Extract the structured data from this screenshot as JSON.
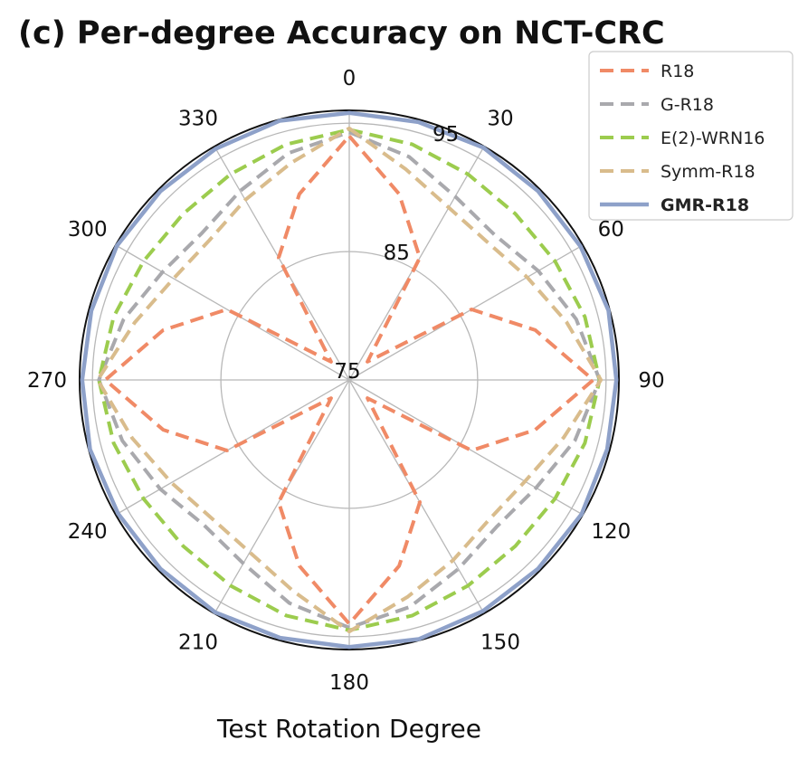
{
  "chart_data": {
    "type": "polar-line",
    "title": "(c) Per-degree Accuracy on NCT-CRC",
    "xlabel": "Test Rotation Degree",
    "theta_ticks": [
      0,
      30,
      60,
      90,
      120,
      150,
      180,
      210,
      240,
      270,
      300,
      330
    ],
    "theta_direction": "clockwise",
    "theta_zero": "top",
    "r_ticks": [
      75,
      85,
      95
    ],
    "r_range": [
      75,
      96
    ],
    "grid": true,
    "legend_position": "top-right",
    "theta": [
      0,
      15,
      30,
      45,
      60,
      75,
      90,
      105,
      120,
      135,
      150,
      165,
      180,
      195,
      210,
      225,
      240,
      255,
      270,
      285,
      300,
      315,
      330,
      345
    ],
    "series": [
      {
        "name": "R18",
        "color": "#f08a66",
        "style": "dashed",
        "bold": false,
        "values": [
          94.0,
          90.0,
          86.0,
          77.0,
          86.0,
          90.0,
          94.0,
          90.0,
          86.0,
          77.0,
          86.0,
          90.0,
          94.0,
          90.0,
          86.0,
          77.0,
          86.0,
          90.0,
          94.0,
          90.0,
          86.0,
          77.0,
          86.0,
          90.0
        ]
      },
      {
        "name": "G-R18",
        "color": "#a9a9ad",
        "style": "dashed",
        "bold": false,
        "values": [
          94.3,
          93.0,
          91.5,
          91.0,
          92.0,
          93.3,
          94.5,
          93.2,
          91.8,
          91.2,
          92.0,
          93.3,
          94.3,
          93.0,
          91.5,
          91.0,
          92.0,
          93.3,
          94.5,
          93.2,
          91.8,
          91.2,
          92.0,
          93.3
        ]
      },
      {
        "name": "E(2)-WRN16",
        "color": "#9ccc4e",
        "style": "dashed",
        "bold": false,
        "values": [
          94.5,
          94.0,
          93.5,
          93.3,
          93.5,
          94.0,
          94.5,
          94.0,
          93.5,
          93.3,
          93.5,
          94.0,
          94.5,
          94.0,
          93.5,
          93.3,
          93.5,
          94.0,
          94.5,
          94.0,
          93.5,
          93.3,
          93.5,
          94.0
        ]
      },
      {
        "name": "Symm-R18",
        "color": "#d9bc8c",
        "style": "dashed",
        "bold": false,
        "values": [
          94.6,
          92.0,
          90.5,
          90.2,
          91.0,
          92.5,
          94.6,
          92.3,
          90.8,
          90.4,
          91.2,
          92.5,
          94.6,
          92.0,
          90.5,
          90.2,
          91.0,
          92.5,
          94.6,
          92.3,
          90.8,
          90.4,
          91.2,
          92.5
        ]
      },
      {
        "name": "GMR-R18",
        "color": "#8ea1c9",
        "style": "solid",
        "bold": true,
        "values": [
          95.8,
          95.8,
          95.9,
          95.8,
          95.8,
          95.9,
          95.8,
          95.8,
          95.9,
          95.8,
          95.8,
          95.9,
          95.8,
          95.8,
          95.9,
          95.8,
          95.8,
          95.9,
          95.8,
          95.8,
          95.9,
          95.8,
          95.8,
          95.9
        ]
      }
    ]
  }
}
